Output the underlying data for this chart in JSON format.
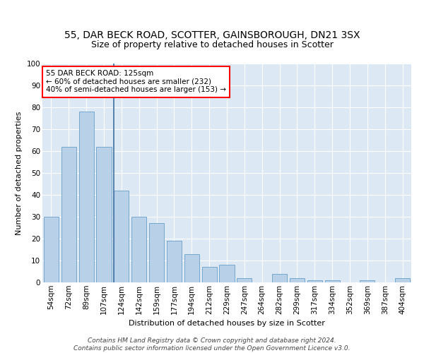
{
  "title": "55, DAR BECK ROAD, SCOTTER, GAINSBOROUGH, DN21 3SX",
  "subtitle": "Size of property relative to detached houses in Scotter",
  "xlabel": "Distribution of detached houses by size in Scotter",
  "ylabel": "Number of detached properties",
  "bar_labels": [
    "54sqm",
    "72sqm",
    "89sqm",
    "107sqm",
    "124sqm",
    "142sqm",
    "159sqm",
    "177sqm",
    "194sqm",
    "212sqm",
    "229sqm",
    "247sqm",
    "264sqm",
    "282sqm",
    "299sqm",
    "317sqm",
    "334sqm",
    "352sqm",
    "369sqm",
    "387sqm",
    "404sqm"
  ],
  "bar_values": [
    30,
    62,
    78,
    62,
    42,
    30,
    27,
    19,
    13,
    7,
    8,
    2,
    0,
    4,
    2,
    1,
    1,
    0,
    1,
    0,
    2
  ],
  "bar_color": "#b8d0e8",
  "bar_edge_color": "#6a9fc8",
  "annotation_text": "55 DAR BECK ROAD: 125sqm\n← 60% of detached houses are smaller (232)\n40% of semi-detached houses are larger (153) →",
  "annotation_box_color": "white",
  "annotation_box_edge_color": "red",
  "property_line_index": 4,
  "ylim": [
    0,
    100
  ],
  "yticks": [
    0,
    10,
    20,
    30,
    40,
    50,
    60,
    70,
    80,
    90,
    100
  ],
  "background_color": "#dde8f5",
  "grid_color": "#ffffff",
  "footer_text": "Contains HM Land Registry data © Crown copyright and database right 2024.\nContains public sector information licensed under the Open Government Licence v3.0.",
  "title_fontsize": 10,
  "axis_label_fontsize": 8,
  "tick_fontsize": 7.5,
  "footer_fontsize": 6.5
}
